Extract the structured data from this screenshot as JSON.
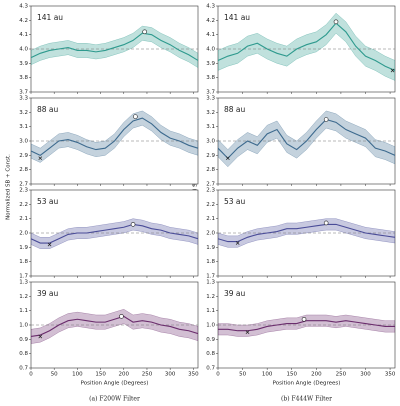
{
  "columns": [
    {
      "caption": "(a) F200W Filter",
      "xlabel": "Position Angle (Degrees)",
      "ylabel": "Normalized SB + Const."
    },
    {
      "caption": "(b) F444W Filter",
      "xlabel": "Position Angle (Degrees)",
      "ylabel": "Normalized SB + Const."
    }
  ],
  "chart_data": [
    {
      "type": "line",
      "label": "141 au",
      "color": "#2e9a8e",
      "band": 0.05,
      "reference": 4.0,
      "x": [
        0,
        20,
        40,
        60,
        80,
        100,
        120,
        140,
        160,
        180,
        200,
        220,
        240,
        260,
        280,
        300,
        320,
        340,
        360
      ],
      "values": [
        3.94,
        3.97,
        3.99,
        4.0,
        4.01,
        3.99,
        3.99,
        3.98,
        3.99,
        4.01,
        4.03,
        4.06,
        4.11,
        4.1,
        4.06,
        4.03,
        3.99,
        3.96,
        3.92
      ],
      "peak": {
        "x": 245,
        "y": 4.12
      },
      "xlim": [
        0,
        360
      ],
      "xticks": [
        0,
        50,
        100,
        150,
        200,
        250,
        300,
        350
      ],
      "ylim": [
        3.7,
        4.3
      ],
      "yticks": [
        3.7,
        3.8,
        3.9,
        {
          "value": 4.0,
          "label": "4.0"
        },
        4.1,
        4.2,
        4.3
      ]
    },
    {
      "type": "line",
      "label": "88 au",
      "color": "#3d6a8e",
      "band": 0.05,
      "reference": 3.0,
      "x": [
        0,
        20,
        40,
        60,
        80,
        100,
        120,
        140,
        160,
        180,
        200,
        220,
        240,
        260,
        280,
        300,
        320,
        340,
        360
      ],
      "values": [
        2.93,
        2.9,
        2.95,
        3.0,
        3.01,
        2.99,
        2.96,
        2.94,
        2.95,
        3.0,
        3.08,
        3.14,
        3.16,
        3.12,
        3.06,
        3.02,
        3.0,
        2.97,
        2.95
      ],
      "peak": {
        "x": 225,
        "y": 3.17
      },
      "trough": {
        "x": 20,
        "y": 2.88
      },
      "xlim": [
        0,
        360
      ],
      "xticks": [
        0,
        50,
        100,
        150,
        200,
        250,
        300,
        350
      ],
      "ylim": [
        2.7,
        3.3
      ],
      "yticks": [
        2.7,
        2.8,
        2.9,
        {
          "value": 3.0,
          "label": "3.0"
        },
        3.1,
        3.2,
        3.3
      ]
    },
    {
      "type": "line",
      "label": "53 au",
      "color": "#4a4c98",
      "band": 0.04,
      "reference": 2.0,
      "x": [
        0,
        20,
        40,
        60,
        80,
        100,
        120,
        140,
        160,
        180,
        200,
        220,
        240,
        260,
        280,
        300,
        320,
        340,
        360
      ],
      "values": [
        1.96,
        1.93,
        1.93,
        1.96,
        1.99,
        2.0,
        2.0,
        2.01,
        2.02,
        2.03,
        2.04,
        2.06,
        2.05,
        2.03,
        2.02,
        2.0,
        1.99,
        1.98,
        1.96
      ],
      "peak": {
        "x": 220,
        "y": 2.06
      },
      "trough": {
        "x": 40,
        "y": 1.92
      },
      "xlim": [
        0,
        360
      ],
      "xticks": [
        0,
        50,
        100,
        150,
        200,
        250,
        300,
        350
      ],
      "ylim": [
        1.7,
        2.3
      ],
      "yticks": [
        1.7,
        1.8,
        1.9,
        {
          "value": 2.0,
          "label": "2.0"
        },
        2.1,
        2.2,
        2.3
      ]
    },
    {
      "type": "line",
      "label": "39 au",
      "color": "#6a2c6c",
      "band": 0.05,
      "reference": 1.0,
      "x": [
        0,
        20,
        40,
        60,
        80,
        100,
        120,
        140,
        160,
        180,
        200,
        220,
        240,
        260,
        280,
        300,
        320,
        340,
        360
      ],
      "values": [
        0.92,
        0.93,
        0.96,
        1.0,
        1.03,
        1.04,
        1.03,
        1.02,
        1.02,
        1.04,
        1.06,
        1.02,
        1.03,
        1.02,
        1.0,
        0.99,
        0.97,
        0.96,
        0.94
      ],
      "peak": {
        "x": 195,
        "y": 1.06
      },
      "trough": {
        "x": 20,
        "y": 0.92
      },
      "xlim": [
        0,
        360
      ],
      "xticks": [
        0,
        50,
        100,
        150,
        200,
        250,
        300,
        350
      ],
      "ylim": [
        0.7,
        1.3
      ],
      "yticks": [
        0.7,
        0.8,
        0.9,
        {
          "value": 1.0,
          "label": "1.0"
        },
        1.1,
        1.2,
        1.3
      ]
    },
    {
      "type": "line",
      "label": "141 au",
      "color": "#2e9a8e",
      "band": 0.07,
      "reference": 4.0,
      "x": [
        0,
        20,
        40,
        60,
        80,
        100,
        120,
        140,
        160,
        180,
        200,
        220,
        240,
        260,
        280,
        300,
        320,
        340,
        360
      ],
      "values": [
        3.92,
        3.95,
        3.97,
        4.02,
        4.04,
        4.0,
        3.97,
        3.95,
        4.0,
        4.03,
        4.05,
        4.1,
        4.18,
        4.12,
        4.02,
        3.95,
        3.92,
        3.88,
        3.85
      ],
      "peak": {
        "x": 240,
        "y": 4.19
      },
      "trough": {
        "x": 355,
        "y": 3.85
      },
      "xlim": [
        0,
        360
      ],
      "xticks": [
        0,
        50,
        100,
        150,
        200,
        250,
        300,
        350
      ],
      "ylim": [
        3.7,
        4.3
      ],
      "yticks": [
        3.7,
        3.8,
        3.9,
        {
          "value": 4.0,
          "label": "4.0"
        },
        4.1,
        4.2,
        4.3
      ]
    },
    {
      "type": "line",
      "label": "88 au",
      "color": "#3d6a8e",
      "band": 0.06,
      "reference": 3.0,
      "x": [
        0,
        20,
        40,
        60,
        80,
        100,
        120,
        140,
        160,
        180,
        200,
        220,
        240,
        260,
        280,
        300,
        320,
        340,
        360
      ],
      "values": [
        2.95,
        2.88,
        2.95,
        3.0,
        2.97,
        3.05,
        3.08,
        2.98,
        2.94,
        3.0,
        3.08,
        3.15,
        3.13,
        3.08,
        3.05,
        3.02,
        2.95,
        2.93,
        2.9
      ],
      "peak": {
        "x": 220,
        "y": 3.15
      },
      "trough": {
        "x": 20,
        "y": 2.88
      },
      "xlim": [
        0,
        360
      ],
      "xticks": [
        0,
        50,
        100,
        150,
        200,
        250,
        300,
        350
      ],
      "ylim": [
        2.7,
        3.3
      ],
      "yticks": [
        2.7,
        2.8,
        2.9,
        {
          "value": 3.0,
          "label": "3.0"
        },
        3.1,
        3.2,
        3.3
      ]
    },
    {
      "type": "line",
      "label": "53 au",
      "color": "#4a4c98",
      "band": 0.04,
      "reference": 2.0,
      "x": [
        0,
        20,
        40,
        60,
        80,
        100,
        120,
        140,
        160,
        180,
        200,
        220,
        240,
        260,
        280,
        300,
        320,
        340,
        360
      ],
      "values": [
        1.96,
        1.94,
        1.94,
        1.97,
        1.99,
        2.0,
        2.01,
        2.03,
        2.03,
        2.04,
        2.05,
        2.06,
        2.06,
        2.04,
        2.02,
        2.0,
        1.99,
        1.98,
        1.97
      ],
      "peak": {
        "x": 220,
        "y": 2.07
      },
      "trough": {
        "x": 40,
        "y": 1.93
      },
      "xlim": [
        0,
        360
      ],
      "xticks": [
        0,
        50,
        100,
        150,
        200,
        250,
        300,
        350
      ],
      "ylim": [
        1.7,
        2.3
      ],
      "yticks": [
        1.7,
        1.8,
        1.9,
        {
          "value": 2.0,
          "label": "2.0"
        },
        2.1,
        2.2,
        2.3
      ]
    },
    {
      "type": "line",
      "label": "39 au",
      "color": "#6a2c6c",
      "band": 0.04,
      "reference": 1.0,
      "x": [
        0,
        20,
        40,
        60,
        80,
        100,
        120,
        140,
        160,
        180,
        200,
        220,
        240,
        260,
        280,
        300,
        320,
        340,
        360
      ],
      "values": [
        0.97,
        0.97,
        0.96,
        0.96,
        0.97,
        0.99,
        1.0,
        1.01,
        1.01,
        1.03,
        1.03,
        1.03,
        1.02,
        1.03,
        1.02,
        1.01,
        1.0,
        0.99,
        0.99
      ],
      "peak": {
        "x": 175,
        "y": 1.04
      },
      "trough": {
        "x": 60,
        "y": 0.95
      },
      "xlim": [
        0,
        360
      ],
      "xticks": [
        0,
        50,
        100,
        150,
        200,
        250,
        300,
        350
      ],
      "ylim": [
        0.7,
        1.3
      ],
      "yticks": [
        0.7,
        0.8,
        0.9,
        {
          "value": 1.0,
          "label": "1.0"
        },
        1.1,
        1.2,
        1.3
      ]
    }
  ]
}
